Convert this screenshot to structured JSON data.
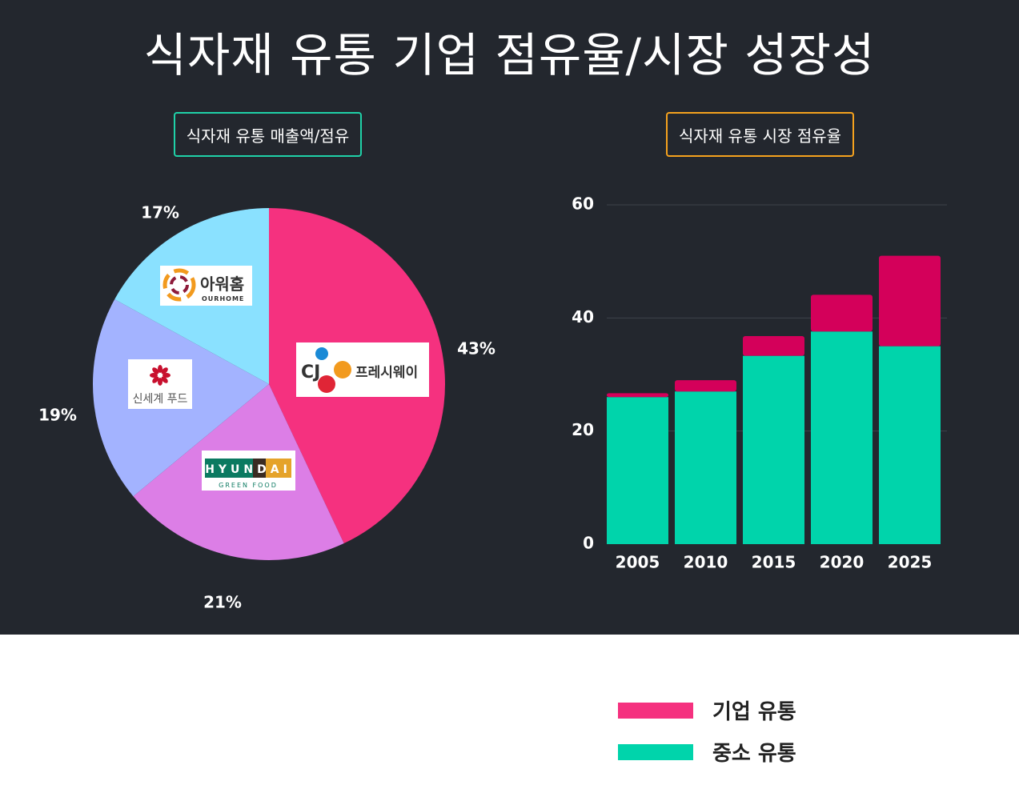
{
  "title": "식자재 유통 기업 점유율/시장 성장성",
  "colors": {
    "background": "#23272e",
    "corporate": "#f5317f",
    "corporate_bar": "#d4005a",
    "sme": "#00d4ab",
    "pie": [
      "#f5317f",
      "#dc7ee6",
      "#a3b3ff",
      "#8ae1ff"
    ]
  },
  "chart_data": [
    {
      "type": "pie",
      "title": "식자재 유통 매출액/점유",
      "slices": [
        {
          "brand": "CJ 프레시웨이",
          "logo_text": "프레시웨이",
          "logo_mark": "CJ",
          "value": 43,
          "label": "43%",
          "color": "#f5317f"
        },
        {
          "brand": "HYUNDAI GREEN FOOD",
          "logo_text": "HYUNDAI",
          "logo_sub": "GREEN FOOD",
          "value": 21,
          "label": "21%",
          "color": "#dc7ee6"
        },
        {
          "brand": "신세계 푸드",
          "logo_text": "신세계 푸드",
          "value": 19,
          "label": "19%",
          "color": "#a3b3ff"
        },
        {
          "brand": "아워홈",
          "logo_text": "아워홈",
          "logo_sub": "OURHOME",
          "value": 17,
          "label": "17%",
          "color": "#8ae1ff"
        }
      ]
    },
    {
      "type": "bar",
      "stacked": true,
      "title": "식자재 유통 시장 점유율",
      "categories": [
        "2005",
        "2010",
        "2015",
        "2020",
        "2025"
      ],
      "series": [
        {
          "name": "중소 유통",
          "values": [
            26,
            27,
            33.3,
            37.6,
            35
          ],
          "color": "#00d4ab"
        },
        {
          "name": "기업 유통",
          "values": [
            0.7,
            2,
            3.5,
            6.5,
            16
          ],
          "color": "#d4005a"
        }
      ],
      "ylim": [
        0,
        60
      ],
      "yticks": [
        "0",
        "20",
        "40",
        "60"
      ],
      "grid": true
    }
  ],
  "legend": [
    {
      "label": "기업 유통",
      "color": "#f5317f"
    },
    {
      "label": "중소 유통",
      "color": "#00d4ab"
    }
  ]
}
